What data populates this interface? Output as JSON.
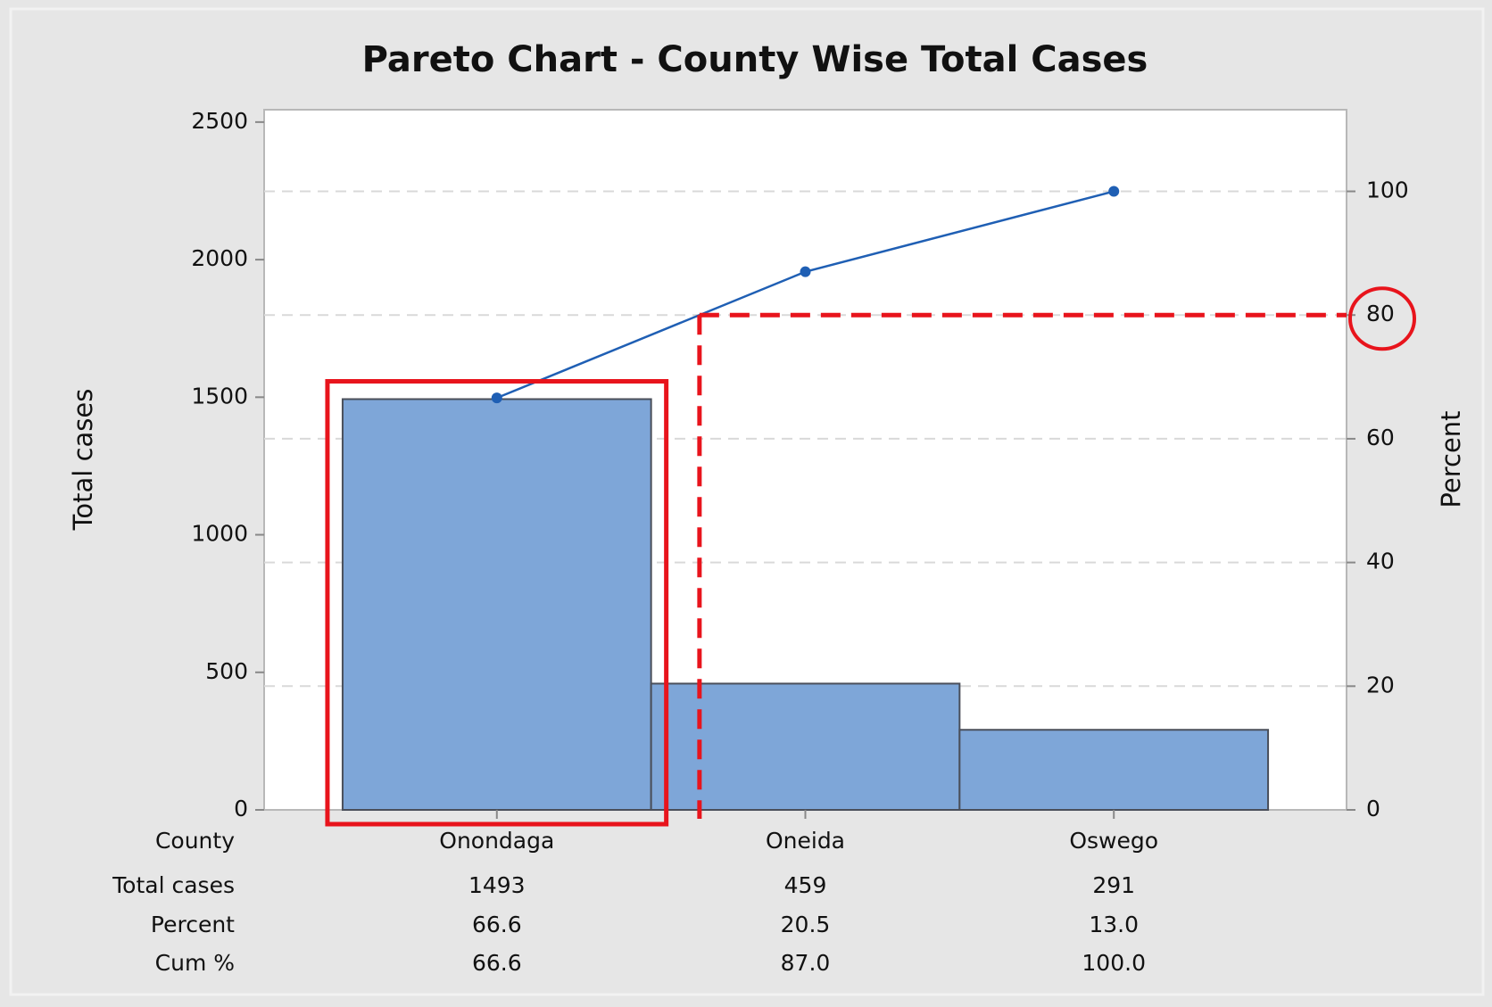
{
  "chart_data": {
    "type": "pareto",
    "title": "Pareto Chart - County Wise Total Cases",
    "y_label": "Total cases",
    "y2_label": "Percent",
    "x_label": "County",
    "categories": [
      "Onondaga",
      "Oneida",
      "Oswego"
    ],
    "series": [
      {
        "name": "Total cases",
        "type": "bar",
        "color": "#7ea6d8",
        "values": [
          1493,
          459,
          291
        ]
      },
      {
        "name": "Cum %",
        "type": "line",
        "axis": "y2",
        "color": "#1f5fb4",
        "values": [
          66.6,
          87.0,
          100.0
        ],
        "value_labels": [
          "66.6",
          "87.0",
          "100.0"
        ]
      }
    ],
    "percent": {
      "name": "Percent",
      "values": [
        "66.6",
        "20.5",
        "13.0"
      ]
    },
    "ylim": [
      0,
      2545
    ],
    "yticks": [
      0,
      500,
      1000,
      1500,
      2000,
      2500
    ],
    "y2lim": [
      0,
      113.2
    ],
    "y2ticks": [
      0,
      20,
      40,
      60,
      80,
      100
    ],
    "grid": true,
    "threshold": {
      "value": 80,
      "color": "#e8141c"
    }
  }
}
